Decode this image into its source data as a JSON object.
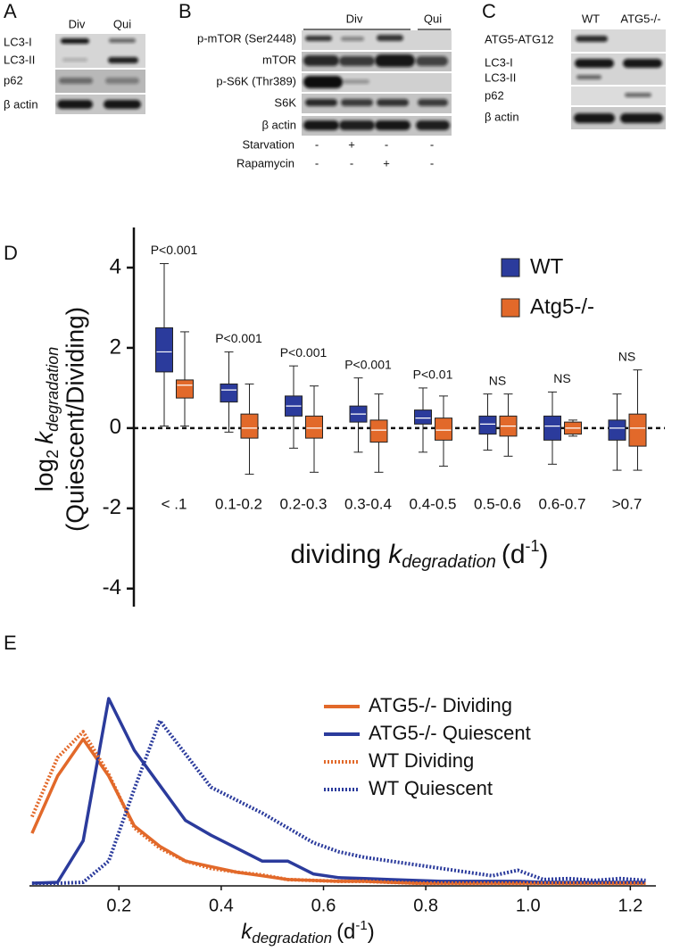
{
  "panels": {
    "A": {
      "letter": "A",
      "lanes": [
        "Div",
        "Qui"
      ],
      "rows": [
        "LC3-I",
        "LC3-II",
        "p62",
        "β actin"
      ]
    },
    "B": {
      "letter": "B",
      "groups": [
        "Div",
        "Qui"
      ],
      "rows": [
        "p-mTOR (Ser2448)",
        "mTOR",
        "p-S6K (Thr389)",
        "S6K",
        "β actin"
      ],
      "treatments": [
        {
          "name": "Starvation",
          "signs": [
            "-",
            "+",
            "-",
            "-"
          ]
        },
        {
          "name": "Rapamycin",
          "signs": [
            "-",
            "-",
            "+",
            "-"
          ]
        }
      ]
    },
    "C": {
      "letter": "C",
      "lanes": [
        "WT",
        "ATG5-/-"
      ],
      "rows": [
        "ATG5-ATG12",
        "LC3-I",
        "LC3-II",
        "p62",
        "β actin"
      ]
    }
  },
  "chart_data": [
    {
      "type": "box",
      "panel_label": "D",
      "ylabel": [
        "log",
        "2",
        "k",
        "degradation",
        "(Quiescent/Dividing)"
      ],
      "xlabel": [
        "dividing",
        "k",
        "degradation",
        "(d",
        "-1",
        ")"
      ],
      "categories": [
        "< .1",
        "0.1-0.2",
        "0.2-0.3",
        "0.3-0.4",
        "0.4-0.5",
        "0.5-0.6",
        "0.6-0.7",
        ">0.7"
      ],
      "annotations": [
        "P<0.001",
        "P<0.001",
        "P<0.001",
        "P<0.001",
        "P<0.01",
        "NS",
        "NS",
        "NS"
      ],
      "series": [
        {
          "name": "WT",
          "color": "#2b3b9c",
          "values": [
            [
              0.05,
              1.4,
              1.9,
              2.5,
              4.1
            ],
            [
              -0.1,
              0.65,
              0.95,
              1.1,
              1.9
            ],
            [
              -0.5,
              0.3,
              0.55,
              0.8,
              1.55
            ],
            [
              -0.6,
              0.15,
              0.35,
              0.55,
              1.25
            ],
            [
              -0.6,
              0.1,
              0.25,
              0.45,
              1.0
            ],
            [
              -0.55,
              -0.15,
              0.1,
              0.3,
              0.85
            ],
            [
              -0.9,
              -0.3,
              0.05,
              0.3,
              0.9
            ],
            [
              -1.05,
              -0.3,
              0,
              0.2,
              0.85
            ]
          ]
        },
        {
          "name": "Atg5-/-",
          "color": "#e2692a",
          "values": [
            [
              0.05,
              0.75,
              1.07,
              1.2,
              2.4
            ],
            [
              -1.15,
              -0.25,
              0,
              0.35,
              1.1
            ],
            [
              -1.1,
              -0.25,
              0,
              0.3,
              1.05
            ],
            [
              -1.1,
              -0.35,
              -0.05,
              0.2,
              0.85
            ],
            [
              -0.95,
              -0.3,
              -0.05,
              0.25,
              0.8
            ],
            [
              -0.7,
              -0.2,
              0.05,
              0.3,
              0.85
            ],
            [
              -0.2,
              -0.15,
              0,
              0.15,
              0.2
            ],
            [
              -1.05,
              -0.45,
              0,
              0.35,
              1.45
            ]
          ]
        }
      ],
      "ylim": [
        -4.45,
        5
      ],
      "yticks": [
        -4,
        -2,
        0,
        2,
        4
      ],
      "reference_line": 0,
      "legend_position": "upper right"
    },
    {
      "type": "line",
      "panel_label": "E",
      "xlabel": [
        "k",
        "degradation",
        "(d",
        "-1",
        ")"
      ],
      "x": [
        0.03,
        0.08,
        0.13,
        0.18,
        0.23,
        0.28,
        0.33,
        0.38,
        0.43,
        0.48,
        0.53,
        0.58,
        0.63,
        0.68,
        0.73,
        0.78,
        0.83,
        0.88,
        0.93,
        0.98,
        1.03,
        1.08,
        1.13,
        1.18,
        1.23
      ],
      "series": [
        {
          "name": "ATG5-/- Dividing",
          "color": "#e2692a",
          "linestyle": "solid",
          "values": [
            0.27,
            0.58,
            0.78,
            0.58,
            0.31,
            0.2,
            0.12,
            0.09,
            0.06,
            0.04,
            0.02,
            0.015,
            0.01,
            0.01,
            0.005,
            0,
            0,
            0,
            0,
            0,
            0,
            0,
            0,
            0,
            0
          ]
        },
        {
          "name": "ATG5-/- Quiescent",
          "color": "#2b3b9c",
          "linestyle": "solid",
          "values": [
            0,
            0.005,
            0.23,
            1.0,
            0.72,
            0.53,
            0.34,
            0.26,
            0.19,
            0.12,
            0.12,
            0.05,
            0.03,
            0.025,
            0.02,
            0.015,
            0.01,
            0.01,
            0.01,
            0.01,
            0.005,
            0.005,
            0.005,
            0.005,
            0.005
          ]
        },
        {
          "name": "WT Dividing",
          "color": "#e2692a",
          "linestyle": "dotted",
          "values": [
            0.36,
            0.68,
            0.82,
            0.59,
            0.3,
            0.19,
            0.12,
            0.08,
            0.06,
            0.045,
            0.02,
            0.015,
            0.01,
            0.01,
            0.005,
            0,
            0,
            0,
            0,
            0,
            0,
            0,
            0,
            0,
            0
          ]
        },
        {
          "name": "WT Quiescent",
          "color": "#2b3b9c",
          "linestyle": "dotted",
          "values": [
            0,
            0,
            0.005,
            0.12,
            0.51,
            0.88,
            0.7,
            0.52,
            0.45,
            0.38,
            0.3,
            0.22,
            0.17,
            0.14,
            0.12,
            0.1,
            0.08,
            0.06,
            0.04,
            0.07,
            0.02,
            0.025,
            0.015,
            0.025,
            0.015
          ]
        }
      ],
      "xlim": [
        0.025,
        1.25
      ],
      "ylim": [
        0,
        1
      ],
      "xticks": [
        0.2,
        0.4,
        0.6,
        0.8,
        {
          "value": 1,
          "label": "1.0"
        },
        1.2
      ],
      "legend_position": "upper right"
    }
  ]
}
